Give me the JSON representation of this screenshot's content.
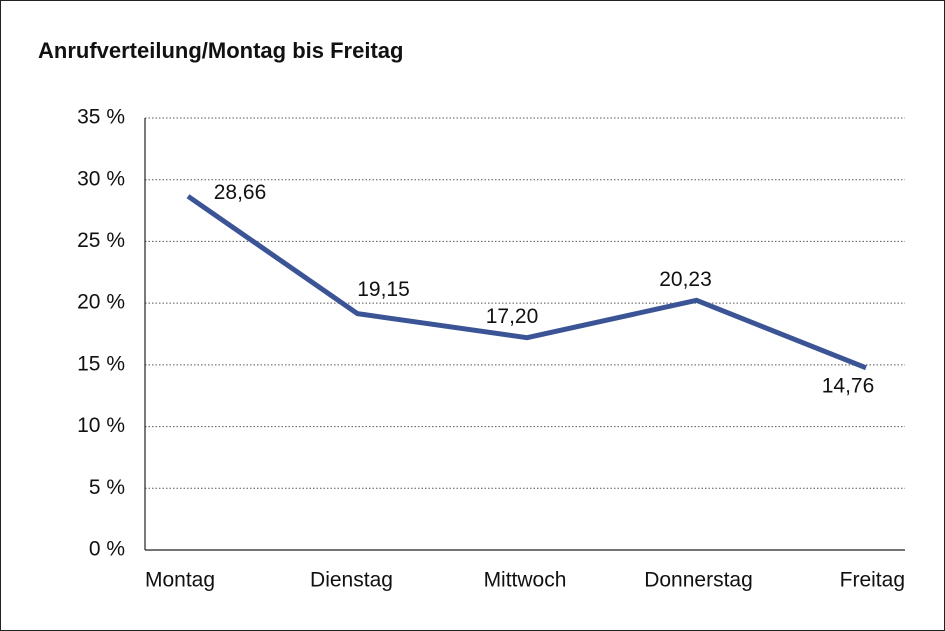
{
  "chart_data": {
    "type": "line",
    "title": "Anrufverteilung/Montag bis Freitag",
    "categories": [
      "Montag",
      "Dienstag",
      "Mittwoch",
      "Donnerstag",
      "Freitag"
    ],
    "series": [
      {
        "color": "#3a5496",
        "values": [
          28.66,
          19.15,
          17.2,
          20.23,
          14.76
        ],
        "value_labels": [
          "28,66",
          "19,15",
          "17,20",
          "20,23",
          "14,76"
        ]
      }
    ],
    "ylim": [
      0,
      35
    ],
    "yticks": [
      {
        "value": 0,
        "label": "0 %"
      },
      {
        "value": 5,
        "label": "5 %"
      },
      {
        "value": 10,
        "label": "10 %"
      },
      {
        "value": 15,
        "label": "15 %"
      },
      {
        "value": 20,
        "label": "20 %"
      },
      {
        "value": 25,
        "label": "25 %"
      },
      {
        "value": 30,
        "label": "30 %"
      },
      {
        "value": 35,
        "label": "35 %"
      }
    ],
    "grid": true
  }
}
